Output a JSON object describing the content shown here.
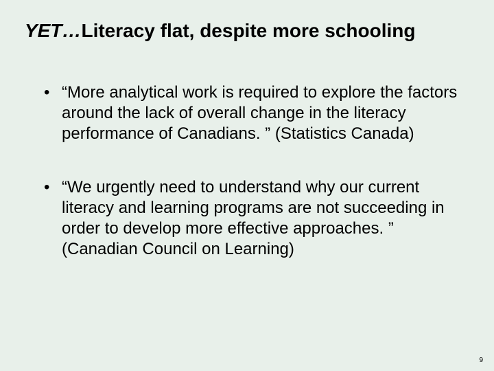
{
  "slide": {
    "title_italic": "YET…",
    "title_rest": "Literacy flat, despite more schooling",
    "bullets": [
      "“More analytical work is required to explore the factors around the lack of overall change in the literacy performance of Canadians. ” (Statistics Canada)",
      "“We urgently need to understand why our current literacy and learning programs are not succeeding in order to develop more effective approaches. ” (Canadian Council on Learning)"
    ],
    "page_number": "9"
  },
  "styling": {
    "background_color": "#e8f0ea",
    "text_color": "#000000",
    "title_fontsize": 28,
    "body_fontsize": 24,
    "page_number_fontsize": 10
  }
}
